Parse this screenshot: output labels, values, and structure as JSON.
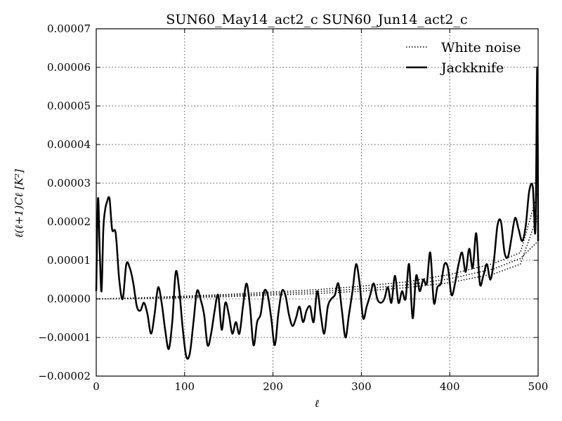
{
  "chart_data": {
    "type": "line",
    "title": "SUN60_May14_act2_c SUN60_Jun14_act2_c",
    "xlabel": "ℓ",
    "ylabel": "ℓ(ℓ+1)Cℓ [K²]",
    "xlim": [
      0,
      500
    ],
    "ylim": [
      -2e-05,
      7e-05
    ],
    "xticks": [
      0,
      100,
      200,
      300,
      400,
      500
    ],
    "xtick_labels": [
      "0",
      "100",
      "200",
      "300",
      "400",
      "500"
    ],
    "yticks": [
      -2e-05,
      -1e-05,
      0,
      1e-05,
      2e-05,
      3e-05,
      4e-05,
      5e-05,
      6e-05,
      7e-05
    ],
    "ytick_labels": [
      "−0.00002",
      "−0.00001",
      "0.00000",
      "0.00001",
      "0.00002",
      "0.00003",
      "0.00004",
      "0.00005",
      "0.00006",
      "0.00007"
    ],
    "grid": true,
    "legend_position": "top-right",
    "series": [
      {
        "name": "White noise",
        "style": "dotted",
        "color": "#000000",
        "bands": [
          {
            "x": [
              0,
              50,
              100,
              150,
              200,
              250,
              300,
              350,
              400,
              450,
              480,
              500
            ],
            "y": [
              0.0,
              2e-07,
              5e-07,
              9e-07,
              1.4e-06,
              1.9e-06,
              2.6e-06,
              3.6e-06,
              5.2e-06,
              7.8e-06,
              1.05e-05,
              1.5e-05
            ]
          },
          {
            "x": [
              0,
              50,
              100,
              150,
              200,
              250,
              300,
              350,
              400,
              450,
              480,
              500
            ],
            "y": [
              0.0,
              1e-07,
              3e-07,
              6e-07,
              1e-06,
              1.4e-06,
              2e-06,
              2.9e-06,
              4.2e-06,
              6.5e-06,
              9e-06,
              2.2e-05
            ]
          },
          {
            "x": [
              0,
              50,
              100,
              150,
              200,
              250,
              300,
              350,
              400,
              450,
              480,
              500
            ],
            "y": [
              0.0,
              3e-07,
              7e-07,
              1.2e-06,
              1.8e-06,
              2.4e-06,
              3.3e-06,
              4.4e-06,
              6.3e-06,
              9.2e-06,
              1.2e-05,
              2.8e-05
            ]
          }
        ]
      },
      {
        "name": "Jackknife",
        "style": "solid",
        "color": "#000000",
        "x": [
          0,
          2,
          4,
          6,
          8,
          10,
          12,
          15,
          18,
          22,
          26,
          30,
          34,
          38,
          42,
          46,
          50,
          54,
          58,
          62,
          66,
          70,
          74,
          78,
          82,
          86,
          90,
          94,
          98,
          102,
          106,
          110,
          114,
          118,
          122,
          126,
          130,
          134,
          138,
          142,
          146,
          150,
          154,
          158,
          162,
          166,
          170,
          174,
          178,
          182,
          186,
          190,
          194,
          198,
          202,
          206,
          210,
          214,
          218,
          222,
          226,
          230,
          234,
          238,
          242,
          246,
          250,
          254,
          258,
          262,
          266,
          270,
          274,
          278,
          282,
          286,
          290,
          294,
          298,
          302,
          306,
          310,
          314,
          318,
          322,
          326,
          330,
          334,
          338,
          342,
          346,
          350,
          354,
          358,
          362,
          366,
          370,
          374,
          378,
          382,
          386,
          390,
          394,
          398,
          402,
          406,
          410,
          414,
          418,
          422,
          426,
          430,
          434,
          438,
          442,
          446,
          450,
          454,
          458,
          462,
          466,
          470,
          474,
          478,
          482,
          486,
          490,
          494,
          497,
          499,
          500
        ],
        "y": [
          2e-06,
          2.6e-05,
          1.2e-05,
          2e-06,
          1.8e-05,
          2.3e-05,
          2.5e-05,
          2.6e-05,
          1.8e-05,
          1.7e-05,
          5e-06,
          0.0,
          9e-06,
          8e-06,
          4e-06,
          -2e-06,
          -3e-06,
          -1e-06,
          -4e-06,
          -9e-06,
          -4e-06,
          3e-06,
          -1e-06,
          -8e-06,
          -1.3e-05,
          -6e-06,
          7e-06,
          2e-06,
          -8e-06,
          -1.5e-05,
          -1.4e-05,
          -6e-06,
          2e-06,
          0.0,
          -4e-06,
          -1.2e-05,
          -9e-06,
          -3e-06,
          1e-06,
          -8e-06,
          -1e-06,
          -4e-06,
          -9e-06,
          -6e-06,
          -9e-06,
          -2e-06,
          4e-06,
          -2e-06,
          -1.2e-05,
          -6e-06,
          -4e-06,
          2e-06,
          1e-06,
          -5e-06,
          -1.2e-05,
          -4e-06,
          2e-06,
          1e-06,
          -4e-06,
          -7e-06,
          -5e-06,
          -2e-06,
          -6e-06,
          -3e-06,
          -2e-06,
          -6e-06,
          2e-06,
          -4e-06,
          -9e-06,
          -2e-06,
          0.0,
          1e-06,
          4e-06,
          -3e-06,
          -1e-05,
          -4e-06,
          2e-06,
          9e-06,
          4e-06,
          -5e-06,
          -2e-06,
          1e-06,
          4e-06,
          0.0,
          -1e-06,
          0.0,
          3e-06,
          -1e-06,
          6e-06,
          -1e-06,
          2e-06,
          0.0,
          9e-06,
          -5e-06,
          6e-06,
          2e-06,
          5e-06,
          4e-06,
          1.2e-05,
          -1e-06,
          3e-06,
          4e-06,
          9e-06,
          8e-06,
          1e-06,
          4e-06,
          9e-06,
          1.2e-05,
          7e-06,
          1.3e-05,
          8e-06,
          1.7e-05,
          4e-06,
          6e-06,
          9e-06,
          5e-06,
          1e-05,
          1.9e-05,
          2e-05,
          1.2e-05,
          1.1e-05,
          1.6e-05,
          2.1e-05,
          1.8e-05,
          1.5e-05,
          1.9e-05,
          2.8e-05,
          2.9e-05,
          1.8e-05,
          6e-05,
          1.5e-05
        ]
      }
    ]
  }
}
